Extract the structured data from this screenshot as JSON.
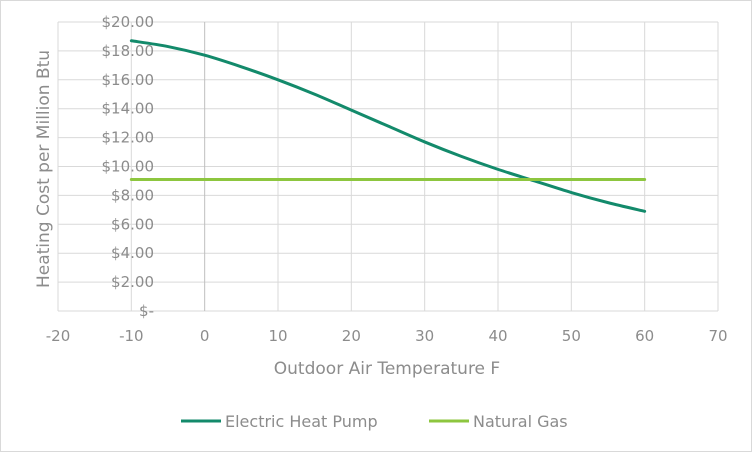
{
  "chart_data": {
    "type": "line",
    "title": "",
    "xlabel": "Outdoor Air Temperature F",
    "ylabel": "Heating Cost per Million Btu",
    "xlim": [
      -20,
      70
    ],
    "ylim": [
      0,
      20
    ],
    "x_ticks": [
      -20,
      -10,
      0,
      10,
      20,
      30,
      40,
      50,
      60,
      70
    ],
    "x_tick_labels": [
      "-20",
      "-10",
      "0",
      "10",
      "20",
      "30",
      "40",
      "50",
      "60",
      "70"
    ],
    "y_ticks": [
      0,
      2,
      4,
      6,
      8,
      10,
      12,
      14,
      16,
      18,
      20
    ],
    "y_tick_labels": [
      "$-",
      "$2.00",
      "$4.00",
      "$6.00",
      "$8.00",
      "$10.00",
      "$12.00",
      "$14.00",
      "$16.00",
      "$18.00",
      "$20.00"
    ],
    "grid": true,
    "legend_position": "bottom",
    "series": [
      {
        "name": "Electric Heat Pump",
        "color": "#138a6b",
        "x": [
          -10,
          -5,
          0,
          5,
          10,
          15,
          20,
          25,
          30,
          35,
          40,
          45,
          50,
          55,
          60
        ],
        "y": [
          18.7,
          18.3,
          17.7,
          16.9,
          16.0,
          15.0,
          13.9,
          12.8,
          11.7,
          10.7,
          9.8,
          9.0,
          8.2,
          7.5,
          6.9
        ]
      },
      {
        "name": "Natural Gas",
        "color": "#8dc63f",
        "x": [
          -10,
          60
        ],
        "y": [
          9.1,
          9.1
        ]
      }
    ]
  }
}
